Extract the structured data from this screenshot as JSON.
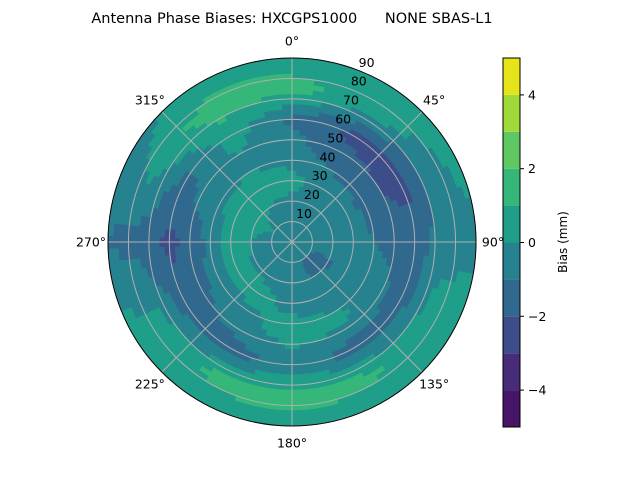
{
  "chart_data": {
    "type": "heatmap",
    "subtype": "polar-filled-contour",
    "title": "Antenna Phase Biases: HXCGPS1000      NONE SBAS-L1",
    "angular_axis": {
      "direction": "clockwise",
      "zero_location": "top",
      "tick_labels": [
        "0°",
        "45°",
        "90°",
        "135°",
        "180°",
        "225°",
        "270°",
        "315°"
      ],
      "tick_values": [
        0,
        45,
        90,
        135,
        180,
        225,
        270,
        315
      ]
    },
    "radial_axis": {
      "range": [
        0,
        90
      ],
      "tick_values": [
        10,
        20,
        30,
        40,
        50,
        60,
        70,
        80,
        90
      ],
      "tick_labels": [
        "10",
        "20",
        "30",
        "40",
        "50",
        "60",
        "70",
        "80",
        "90"
      ]
    },
    "grid": true,
    "colorbar": {
      "label": "Bias (mm)",
      "colormap": "viridis",
      "levels": [
        -5,
        -4,
        -3,
        -2,
        -1,
        0,
        1,
        2,
        3,
        4,
        5
      ],
      "tick_values": [
        -4,
        -2,
        0,
        2,
        4
      ],
      "tick_labels": [
        "−4",
        "−2",
        "0",
        "2",
        "4"
      ],
      "colors": [
        "#471567",
        "#472c7a",
        "#3d4d8a",
        "#31688e",
        "#26828e",
        "#1f9e89",
        "#35b779",
        "#5ec962",
        "#a0da39",
        "#e5e419"
      ],
      "placement": "right"
    },
    "grid_azimuths": [
      0,
      30,
      60,
      90,
      120,
      150,
      180,
      210,
      240,
      270,
      300,
      330
    ],
    "grid_zeniths": [
      0,
      15,
      30,
      45,
      60,
      75,
      90
    ],
    "values": [
      [
        -0.5,
        -0.5,
        -0.5,
        -0.5,
        -0.5,
        -0.5,
        -0.5,
        -0.5,
        -0.5,
        -0.5,
        -0.5,
        -0.5
      ],
      [
        -0.5,
        -0.5,
        -0.5,
        -0.6,
        -1.2,
        -1.2,
        -0.6,
        -0.5,
        -0.4,
        -0.3,
        0.2,
        -0.3
      ],
      [
        0.3,
        -0.3,
        -0.5,
        -0.5,
        -0.8,
        -0.5,
        -0.3,
        0.3,
        0.5,
        0.5,
        0.5,
        0.5
      ],
      [
        -0.5,
        -1.5,
        -1.8,
        -1.2,
        -0.5,
        0.3,
        0.5,
        -0.3,
        -1.0,
        -1.2,
        -0.5,
        -0.3
      ],
      [
        -1.2,
        -2.3,
        -2.5,
        -1.5,
        -1.5,
        -1.5,
        -0.5,
        -1.5,
        -1.5,
        -2.3,
        -1.3,
        0.5
      ],
      [
        1.5,
        0.5,
        -0.5,
        -0.5,
        0.5,
        1.2,
        1.5,
        1.3,
        0.3,
        -1.5,
        0.5,
        1.5
      ],
      [
        0.3,
        0.5,
        0.5,
        -0.3,
        0.8,
        0.5,
        0.5,
        0.5,
        0.3,
        -1.0,
        -0.5,
        0.5
      ]
    ]
  }
}
